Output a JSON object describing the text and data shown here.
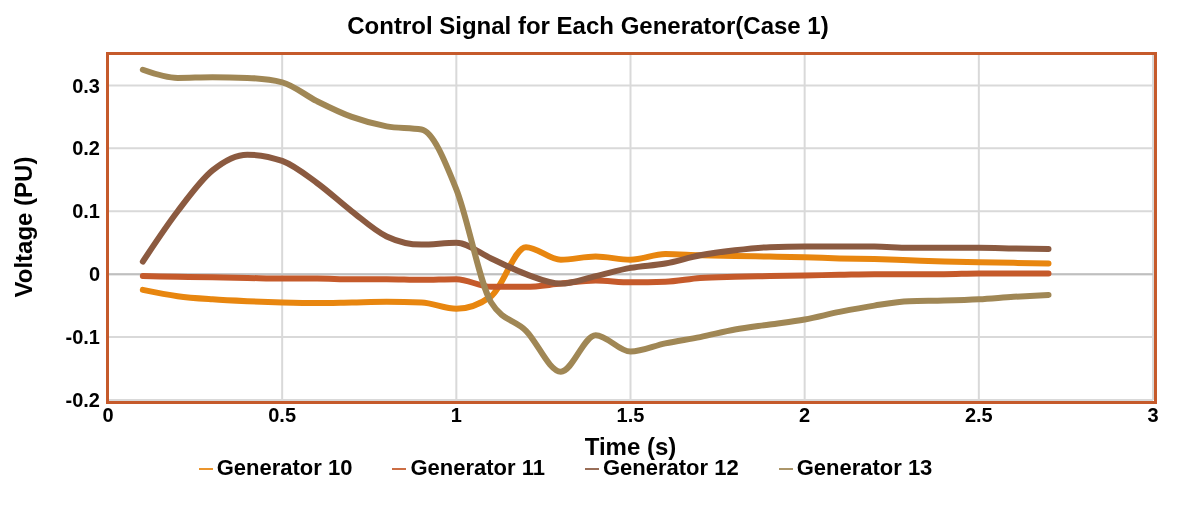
{
  "chart_data": {
    "type": "line",
    "title": "Control Signal for Each Generator(Case 1)",
    "xlabel": "Time (s)",
    "ylabel": "Voltage (PU)",
    "x": [
      0.1,
      0.2,
      0.3,
      0.4,
      0.5,
      0.6,
      0.7,
      0.8,
      0.9,
      1.0,
      1.1,
      1.2,
      1.3,
      1.4,
      1.5,
      1.6,
      1.7,
      1.8,
      1.9,
      2.0,
      2.1,
      2.2,
      2.3,
      2.4,
      2.5,
      2.6,
      2.7
    ],
    "series": [
      {
        "name": "Generator 10",
        "color": "#e8860f",
        "values": [
          -0.025,
          -0.035,
          -0.04,
          -0.043,
          -0.045,
          -0.046,
          -0.045,
          -0.044,
          -0.045,
          -0.055,
          -0.035,
          0.043,
          0.023,
          0.028,
          0.023,
          0.032,
          0.03,
          0.029,
          0.028,
          0.027,
          0.025,
          0.024,
          0.022,
          0.02,
          0.019,
          0.018,
          0.017
        ]
      },
      {
        "name": "Generator 11",
        "color": "#c55a2b",
        "values": [
          -0.003,
          -0.004,
          -0.005,
          -0.006,
          -0.007,
          -0.007,
          -0.008,
          -0.008,
          -0.009,
          -0.008,
          -0.02,
          -0.02,
          -0.015,
          -0.01,
          -0.013,
          -0.012,
          -0.006,
          -0.004,
          -0.003,
          -0.002,
          -0.001,
          0,
          0,
          0,
          0.001,
          0.001,
          0.001
        ]
      },
      {
        "name": "Generator 12",
        "color": "#8b5a40",
        "values": [
          0.02,
          0.1,
          0.165,
          0.19,
          0.18,
          0.145,
          0.1,
          0.06,
          0.047,
          0.05,
          0.025,
          0,
          -0.015,
          -0.003,
          0.01,
          0.017,
          0.03,
          0.038,
          0.043,
          0.044,
          0.044,
          0.044,
          0.042,
          0.042,
          0.042,
          0.041,
          0.04
        ]
      },
      {
        "name": "Generator 13",
        "color": "#a08755",
        "values": [
          0.325,
          0.312,
          0.313,
          0.312,
          0.305,
          0.275,
          0.25,
          0.235,
          0.23,
          0.135,
          -0.045,
          -0.09,
          -0.155,
          -0.097,
          -0.123,
          -0.11,
          -0.1,
          -0.088,
          -0.08,
          -0.072,
          -0.06,
          -0.05,
          -0.043,
          -0.042,
          -0.04,
          -0.036,
          -0.033
        ]
      }
    ],
    "xlim": [
      0,
      3
    ],
    "xticks": [
      0,
      0.5,
      1,
      1.5,
      2,
      2.5,
      3
    ],
    "ylim": [
      -0.2,
      0.35
    ],
    "yticks": [
      -0.2,
      -0.1,
      0,
      0.1,
      0.2,
      0.3
    ],
    "grid": true,
    "legend": "bottom",
    "marker": "none",
    "line_style": "solid"
  }
}
